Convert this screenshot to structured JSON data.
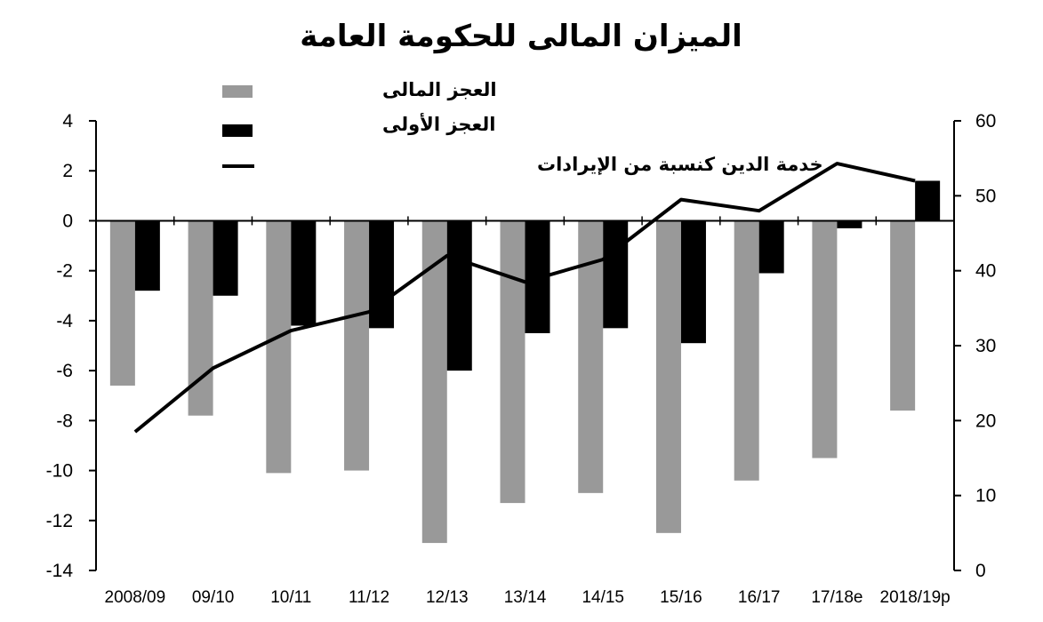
{
  "chart_data": {
    "type": "bar",
    "title": "الميزان المالى للحكومة العامة",
    "categories": [
      "2008/09",
      "09/10",
      "10/11",
      "11/12",
      "12/13",
      "13/14",
      "14/15",
      "15/16",
      "16/17",
      "17/18e",
      "2018/19p"
    ],
    "series": [
      {
        "name": "العجز المالى",
        "type": "bar",
        "axis": "left",
        "color": "#999999",
        "values": [
          -6.6,
          -7.8,
          -10.1,
          -10.0,
          -12.9,
          -11.3,
          -10.9,
          -12.5,
          -10.4,
          -9.5,
          -7.6
        ]
      },
      {
        "name": "العجز الأولى",
        "type": "bar",
        "axis": "left",
        "color": "#000000",
        "values": [
          -2.8,
          -3.0,
          -4.2,
          -4.3,
          -6.0,
          -4.5,
          -4.3,
          -4.9,
          -2.1,
          -0.3,
          1.6
        ]
      },
      {
        "name": "خدمة الدين كنسبة من الإيرادات",
        "type": "line",
        "axis": "right",
        "color": "#000000",
        "values": [
          18.5,
          27.0,
          32.0,
          34.5,
          42.0,
          38.5,
          41.5,
          49.5,
          48.0,
          54.3,
          52.0
        ]
      }
    ],
    "y_left": {
      "min": -14,
      "max": 4,
      "step": 2
    },
    "y_right": {
      "min": 0,
      "max": 60,
      "step": 10
    },
    "legend_position": "top-center",
    "grid": false
  }
}
